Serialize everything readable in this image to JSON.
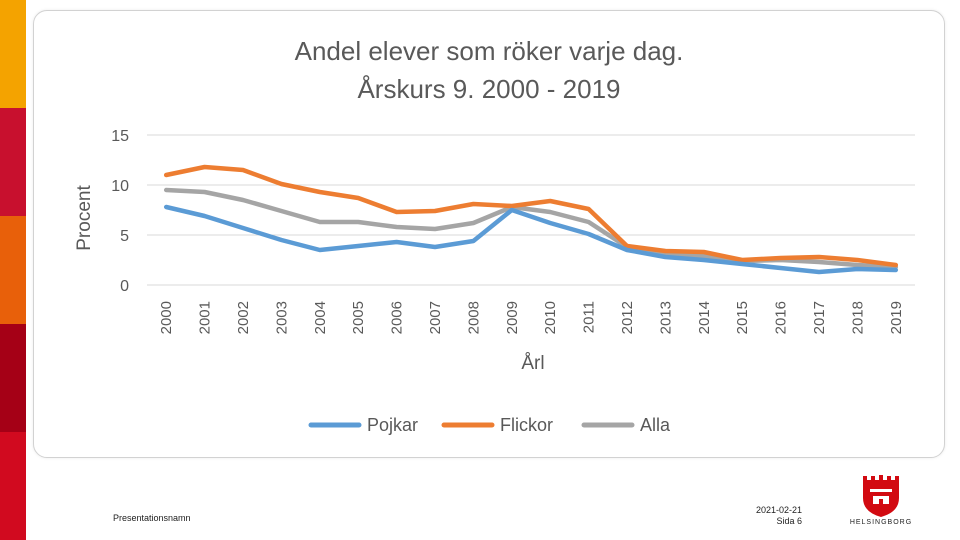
{
  "colors": {
    "stripes": [
      "#f4a300",
      "#c8102e",
      "#e8600a",
      "#a50016",
      "#d10a1f"
    ],
    "pojkar": "#5b9bd5",
    "flickor": "#ed7d31",
    "alla": "#a5a5a5",
    "logo": "#d20a11"
  },
  "chart_data": {
    "type": "line",
    "title": [
      "Andel elever som röker varje dag.",
      "Årskurs 9. 2000 - 2019"
    ],
    "xlabel": "Årl",
    "ylabel": "Procent",
    "ylim": [
      0,
      15
    ],
    "yticks": [
      "0",
      "5",
      "10",
      "15"
    ],
    "grid": true,
    "legend_position": "bottom",
    "categories": [
      "2000",
      "2001",
      "2002",
      "2003",
      "2004",
      "2005",
      "2006",
      "2007",
      "2008",
      "2009",
      "2010",
      "2011",
      "2012",
      "2013",
      "2014",
      "2015",
      "2016",
      "2017",
      "2018",
      "2019"
    ],
    "series": [
      {
        "name": "Pojkar",
        "values": [
          7.8,
          6.9,
          5.7,
          4.5,
          3.5,
          3.9,
          4.3,
          3.8,
          4.4,
          7.5,
          6.2,
          5.1,
          3.5,
          2.8,
          2.5,
          2.1,
          1.7,
          1.3,
          1.6,
          1.5
        ]
      },
      {
        "name": "Flickor",
        "values": [
          11.0,
          11.8,
          11.5,
          10.1,
          9.3,
          8.7,
          7.3,
          7.4,
          8.1,
          7.9,
          8.4,
          7.6,
          3.9,
          3.4,
          3.3,
          2.5,
          2.7,
          2.8,
          2.5,
          2.0
        ]
      },
      {
        "name": "Alla",
        "values": [
          9.5,
          9.3,
          8.5,
          7.4,
          6.3,
          6.3,
          5.8,
          5.6,
          6.2,
          7.8,
          7.3,
          6.3,
          3.8,
          3.1,
          2.9,
          2.4,
          2.5,
          2.3,
          2.0,
          1.8
        ]
      }
    ]
  },
  "footer": {
    "presentation_name": "Presentationsnamn",
    "date": "2021-02-21",
    "page": "Sida 6",
    "logo_text": "HELSINGBORG"
  }
}
